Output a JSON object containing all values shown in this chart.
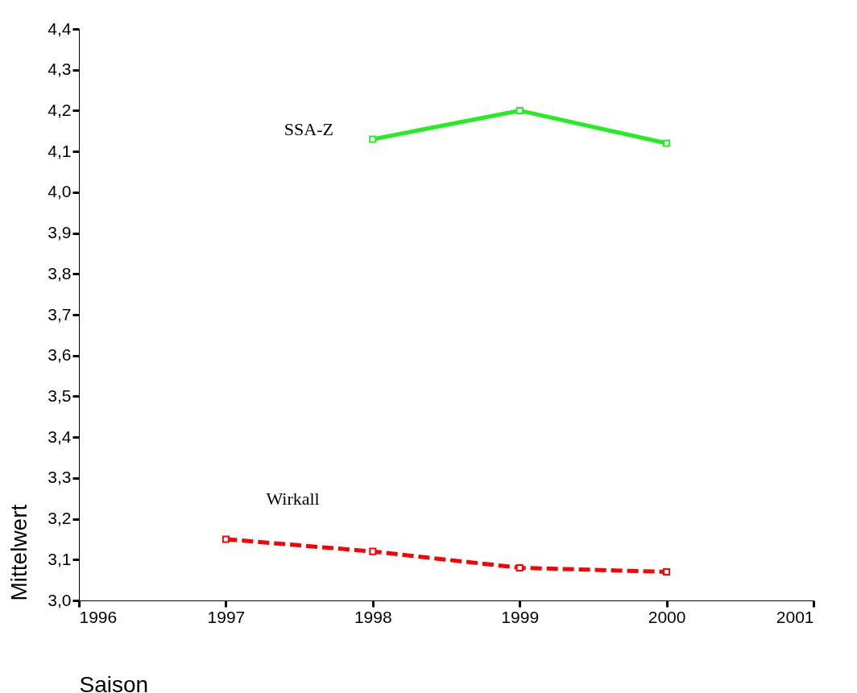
{
  "chart_data": {
    "type": "line",
    "xlabel": "Saison",
    "ylabel": "Mittelwert",
    "xlim": [
      1996,
      2001
    ],
    "xticks": [
      1996,
      1997,
      1998,
      1999,
      2000,
      2001
    ],
    "ylim": [
      3.0,
      4.4
    ],
    "yticks": [
      {
        "value": 3.0,
        "label": "3,0"
      },
      {
        "value": 3.1,
        "label": "3,1"
      },
      {
        "value": 3.2,
        "label": "3,2"
      },
      {
        "value": 3.3,
        "label": "3,3"
      },
      {
        "value": 3.4,
        "label": "3,4"
      },
      {
        "value": 3.5,
        "label": "3,5"
      },
      {
        "value": 3.6,
        "label": "3,6"
      },
      {
        "value": 3.7,
        "label": "3,7"
      },
      {
        "value": 3.8,
        "label": "3,8"
      },
      {
        "value": 3.9,
        "label": "3,9"
      },
      {
        "value": 4.0,
        "label": "4,0"
      },
      {
        "value": 4.1,
        "label": "4,1"
      },
      {
        "value": 4.2,
        "label": "4,2"
      },
      {
        "value": 4.3,
        "label": "4,3"
      },
      {
        "value": 4.4,
        "label": "4,4"
      }
    ],
    "marker": "square",
    "grid": false,
    "series": [
      {
        "name": "SSA-Z",
        "color": "#22ee22",
        "line_style": "solid",
        "x": [
          1998,
          1999,
          2000
        ],
        "values": [
          4.13,
          4.2,
          4.12
        ]
      },
      {
        "name": "Wirkall",
        "color": "#ff0000",
        "line_style": "dashed",
        "x": [
          1997,
          1998,
          1999,
          2000
        ],
        "values": [
          3.15,
          3.12,
          3.08,
          3.07
        ]
      }
    ]
  }
}
